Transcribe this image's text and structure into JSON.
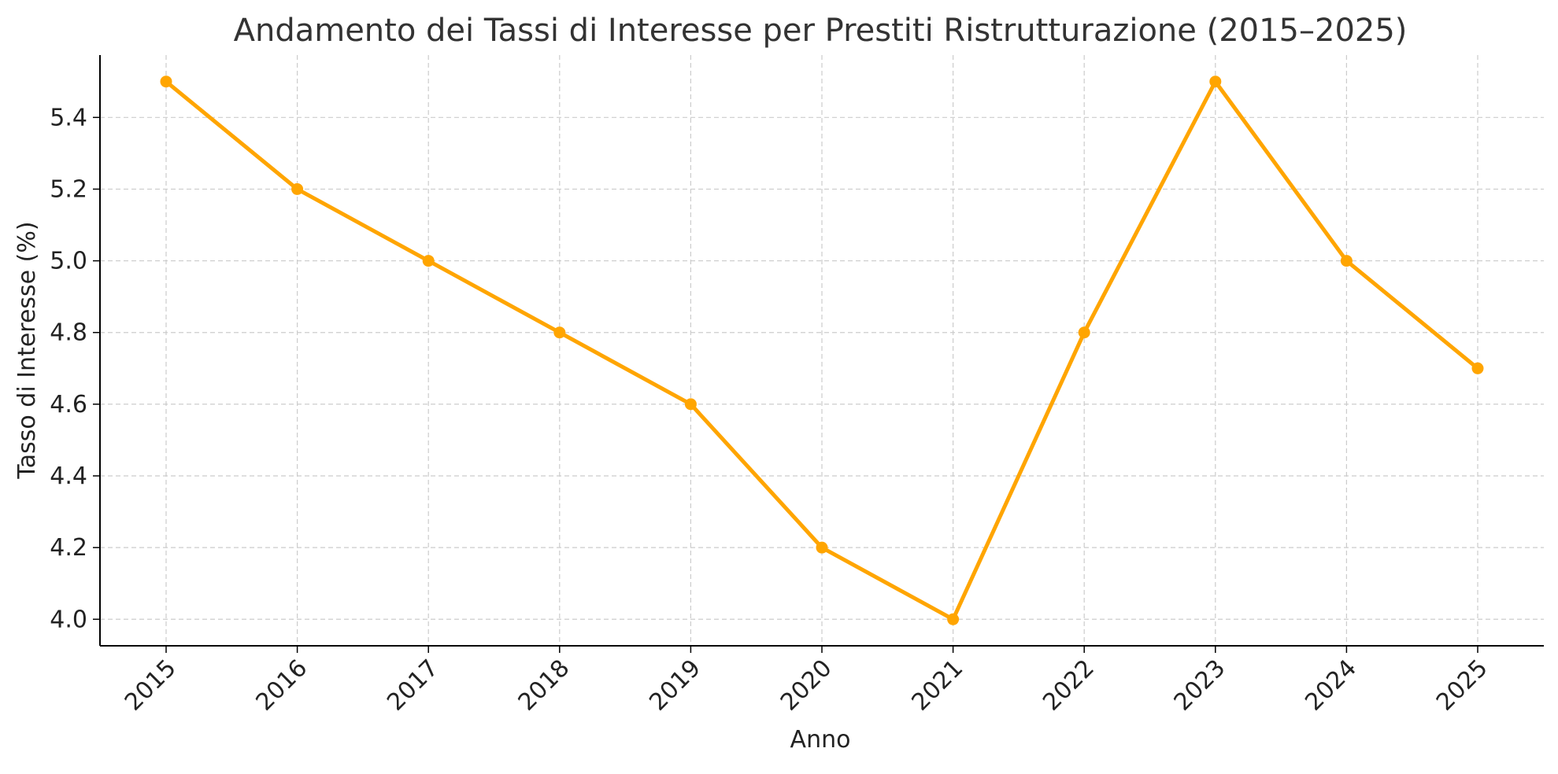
{
  "chart_data": {
    "type": "line",
    "title": "Andamento dei Tassi di Interesse per Prestiti Ristrutturazione (2015–2025)",
    "xlabel": "Anno",
    "ylabel": "Tasso di Interesse (%)",
    "x": [
      "2015",
      "2016",
      "2017",
      "2018",
      "2019",
      "2020",
      "2021",
      "2022",
      "2023",
      "2024",
      "2025"
    ],
    "series": [
      {
        "values": [
          5.5,
          5.2,
          5.0,
          4.8,
          4.6,
          4.2,
          4.0,
          4.8,
          5.5,
          5.0,
          4.7
        ],
        "color": "#FFA500"
      }
    ],
    "ylim": [
      3.926,
      5.574
    ],
    "yticks": [
      "4.0",
      "4.2",
      "4.4",
      "4.6",
      "4.8",
      "5.0",
      "5.2",
      "5.4"
    ],
    "grid": true,
    "grid_color": "#cccccc",
    "axis_color": "#000000"
  }
}
